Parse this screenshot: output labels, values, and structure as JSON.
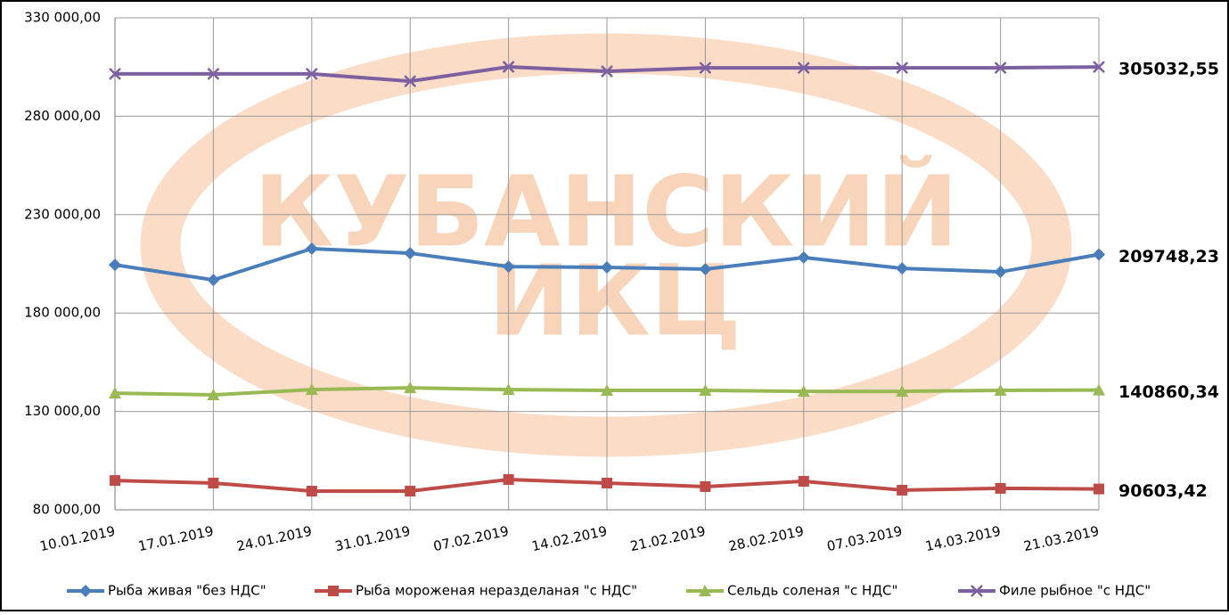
{
  "chart_data": {
    "type": "line",
    "watermark": [
      "КУБАНСКИЙ",
      "ИКЦ"
    ],
    "x": [
      "10.01.2019",
      "17.01.2019",
      "24.01.2019",
      "31.01.2019",
      "07.02.2019",
      "14.02.2019",
      "21.02.2019",
      "28.02.2019",
      "07.03.2019",
      "14.03.2019",
      "21.03.2019"
    ],
    "series": [
      {
        "name": "Рыба живая \"без НДС\"",
        "color": "#4a7ebb",
        "marker": "diamond",
        "values": [
          204500,
          196800,
          212700,
          210400,
          203600,
          203200,
          202300,
          208200,
          202700,
          200900,
          209748.23
        ],
        "value_labels": [
          null,
          null,
          null,
          null,
          null,
          null,
          null,
          null,
          null,
          null,
          "209748,23"
        ]
      },
      {
        "name": "Рыба мороженая неразделаная \"с НДС\"",
        "color": "#be4b48",
        "marker": "square",
        "values": [
          94900,
          93600,
          89500,
          89500,
          95400,
          93600,
          91800,
          94500,
          90000,
          90900,
          90603.42
        ],
        "value_labels": [
          null,
          null,
          null,
          null,
          null,
          null,
          null,
          null,
          null,
          null,
          "90603,42"
        ]
      },
      {
        "name": "Сельдь соленая \"с НДС\"",
        "color": "#98b954",
        "marker": "triangle",
        "values": [
          139300,
          138400,
          141100,
          142000,
          141100,
          140700,
          140700,
          140200,
          140200,
          140700,
          140860.34
        ],
        "value_labels": [
          null,
          null,
          null,
          null,
          null,
          null,
          null,
          null,
          null,
          null,
          "140860,34"
        ]
      },
      {
        "name": "Филе рыбное \"с НДС\"",
        "color": "#7d60a0",
        "marker": "x",
        "values": [
          301500,
          301500,
          301500,
          297800,
          305100,
          302800,
          304600,
          304600,
          304600,
          304600,
          305032.55
        ],
        "value_labels": [
          null,
          null,
          null,
          null,
          null,
          null,
          null,
          null,
          null,
          null,
          "305032,55"
        ]
      }
    ],
    "ylim": [
      80000,
      330000
    ],
    "yticks": [
      {
        "value": 80000,
        "label": "80 000,00"
      },
      {
        "value": 130000,
        "label": "130 000,00"
      },
      {
        "value": 180000,
        "label": "180 000,00"
      },
      {
        "value": 230000,
        "label": "230 000,00"
      },
      {
        "value": 280000,
        "label": "280 000,00"
      },
      {
        "value": 330000,
        "label": "330 000,00"
      }
    ],
    "grid": true,
    "legend": "bottom"
  }
}
